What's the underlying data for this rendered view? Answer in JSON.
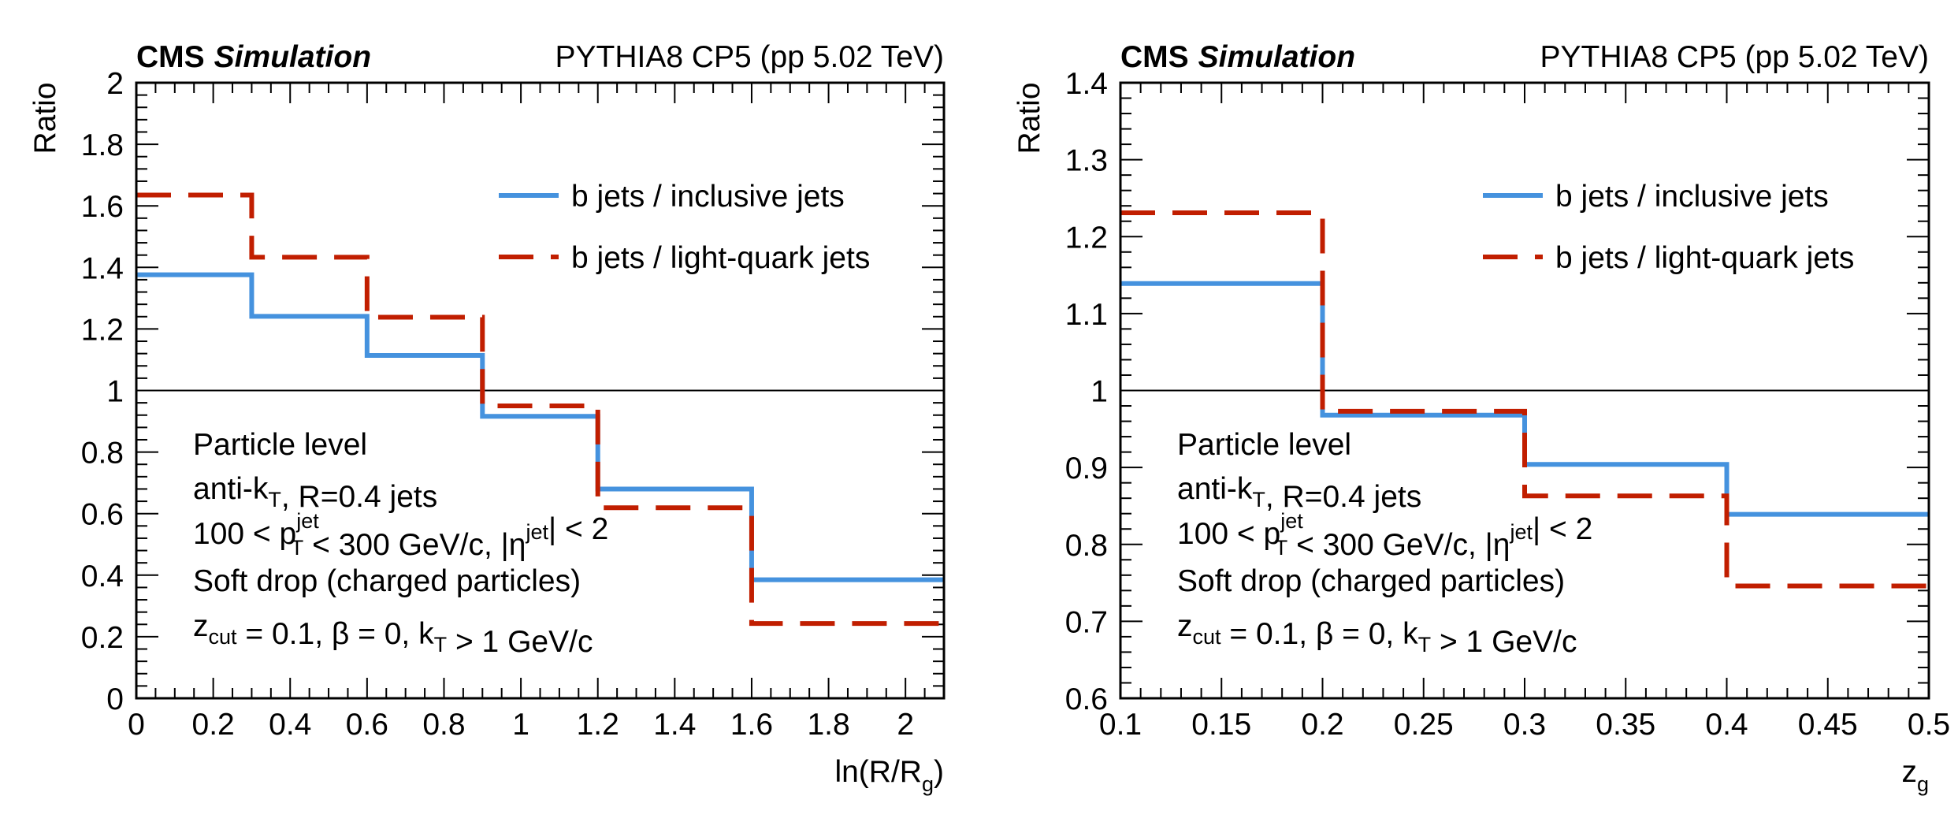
{
  "chart_data": [
    {
      "type": "line",
      "style": "step-histogram",
      "experiment_label": "CMS",
      "experiment_sublabel": "Simulation",
      "header_right": "PYTHIA8 CP5 (pp 5.02 TeV)",
      "title": "",
      "xlabel": "ln(R/R",
      "xlabel_sub": "g",
      "xlabel_close": ")",
      "ylabel": "Ratio",
      "xlim": [
        0,
        2.1
      ],
      "ylim": [
        0,
        2
      ],
      "x_major_ticks": [
        0,
        0.2,
        0.4,
        0.6,
        0.8,
        1,
        1.2,
        1.4,
        1.6,
        1.8,
        2
      ],
      "x_tick_labels": [
        "0",
        "0.2",
        "0.4",
        "0.6",
        "0.8",
        "1",
        "1.2",
        "1.4",
        "1.6",
        "1.8",
        "2"
      ],
      "x_minor_step": 0.05,
      "y_major_ticks": [
        0,
        0.2,
        0.4,
        0.6,
        0.8,
        1,
        1.2,
        1.4,
        1.6,
        1.8,
        2
      ],
      "y_tick_labels": [
        "0",
        "0.2",
        "0.4",
        "0.6",
        "0.8",
        "1",
        "1.2",
        "1.4",
        "1.6",
        "1.8",
        "2"
      ],
      "y_minor_step": 0.04,
      "reference_line": 1,
      "grid": false,
      "legend_position": "top-right",
      "bin_edges": [
        0,
        0.3,
        0.6,
        0.9,
        1.2,
        1.6,
        2.1
      ],
      "series": [
        {
          "name": "b jets / inclusive jets",
          "color": "#4592de",
          "dash": "solid",
          "values": [
            1.376,
            1.241,
            1.114,
            0.916,
            0.68,
            0.385
          ]
        },
        {
          "name": "b jets / light-quark jets",
          "color": "#c11e00",
          "dash": "dashed",
          "values": [
            1.635,
            1.433,
            1.238,
            0.95,
            0.619,
            0.243
          ]
        }
      ],
      "annotations": [
        {
          "parts": [
            {
              "t": "Particle level"
            }
          ]
        },
        {
          "parts": [
            {
              "t": "anti-k"
            },
            {
              "t": "T",
              "sub": true
            },
            {
              "t": ", R=0.4 jets"
            }
          ]
        },
        {
          "parts": [
            {
              "t": "100 < p"
            },
            {
              "t": "T",
              "sub": true,
              "sup": "jet"
            },
            {
              "t": " < 300 GeV/c, |η"
            },
            {
              "t": "",
              "sup": "jet"
            },
            {
              "t": "| < 2"
            }
          ]
        },
        {
          "parts": [
            {
              "t": "Soft drop (charged particles)"
            }
          ]
        },
        {
          "parts": [
            {
              "t": "z"
            },
            {
              "t": "cut",
              "sub": true
            },
            {
              "t": " = 0.1, β = 0, k"
            },
            {
              "t": "T",
              "sub": true
            },
            {
              "t": " > 1 GeV/c"
            }
          ]
        }
      ]
    },
    {
      "type": "line",
      "style": "step-histogram",
      "experiment_label": "CMS",
      "experiment_sublabel": "Simulation",
      "header_right": "PYTHIA8 CP5 (pp 5.02 TeV)",
      "title": "",
      "xlabel": "z",
      "xlabel_sub": "g",
      "xlabel_close": "",
      "ylabel": "Ratio",
      "xlim": [
        0.1,
        0.5
      ],
      "ylim": [
        0.6,
        1.4
      ],
      "x_major_ticks": [
        0.1,
        0.15,
        0.2,
        0.25,
        0.3,
        0.35,
        0.4,
        0.45,
        0.5
      ],
      "x_tick_labels": [
        "0.1",
        "0.15",
        "0.2",
        "0.25",
        "0.3",
        "0.35",
        "0.4",
        "0.45",
        "0.5"
      ],
      "x_minor_step": 0.01,
      "y_major_ticks": [
        0.6,
        0.7,
        0.8,
        0.9,
        1,
        1.1,
        1.2,
        1.3,
        1.4
      ],
      "y_tick_labels": [
        "0.6",
        "0.7",
        "0.8",
        "0.9",
        "1",
        "1.1",
        "1.2",
        "1.3",
        "1.4"
      ],
      "y_minor_step": 0.02,
      "reference_line": 1,
      "grid": false,
      "legend_position": "top-right",
      "bin_edges": [
        0.1,
        0.2,
        0.3,
        0.4,
        0.5
      ],
      "series": [
        {
          "name": "b jets / inclusive jets",
          "color": "#4592de",
          "dash": "solid",
          "values": [
            1.139,
            0.968,
            0.904,
            0.839
          ]
        },
        {
          "name": "b jets / light-quark jets",
          "color": "#c11e00",
          "dash": "dashed",
          "values": [
            1.231,
            0.973,
            0.863,
            0.746
          ]
        }
      ],
      "annotations": [
        {
          "parts": [
            {
              "t": "Particle level"
            }
          ]
        },
        {
          "parts": [
            {
              "t": "anti-k"
            },
            {
              "t": "T",
              "sub": true
            },
            {
              "t": ", R=0.4 jets"
            }
          ]
        },
        {
          "parts": [
            {
              "t": "100 < p"
            },
            {
              "t": "T",
              "sub": true,
              "sup": "jet"
            },
            {
              "t": " < 300 GeV/c, |η"
            },
            {
              "t": "",
              "sup": "jet"
            },
            {
              "t": "| < 2"
            }
          ]
        },
        {
          "parts": [
            {
              "t": "Soft drop (charged particles)"
            }
          ]
        },
        {
          "parts": [
            {
              "t": "z"
            },
            {
              "t": "cut",
              "sub": true
            },
            {
              "t": " = 0.1, β = 0, k"
            },
            {
              "t": "T",
              "sub": true
            },
            {
              "t": " > 1 GeV/c"
            }
          ]
        }
      ]
    }
  ]
}
